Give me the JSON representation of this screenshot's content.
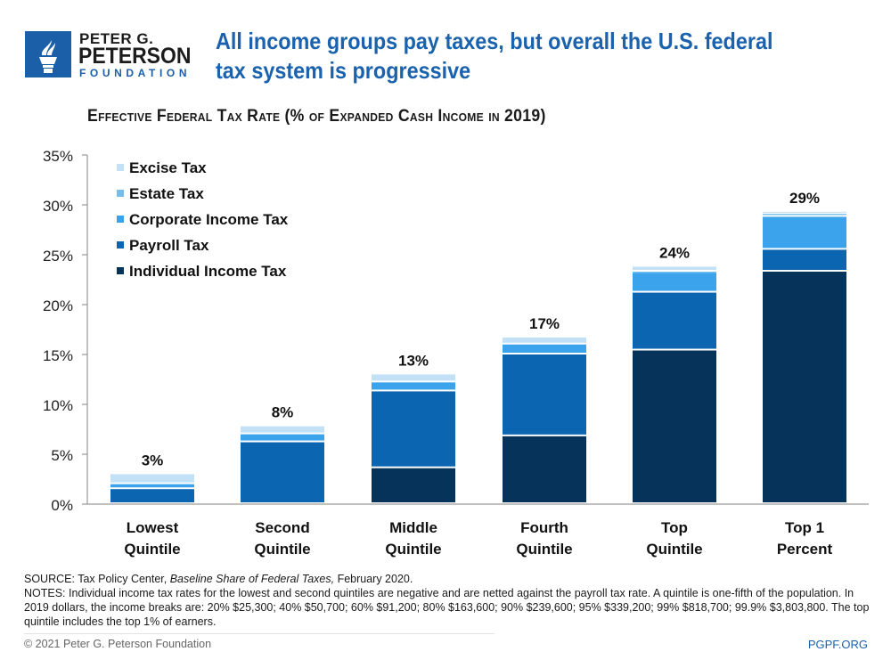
{
  "brand": {
    "line1": "PETER G.",
    "line2": "PETERSON",
    "line3": "FOUNDATION",
    "icon": "torch-icon",
    "color": "#1a5fa8"
  },
  "headline": "All income groups pay taxes, but overall the U.S. federal tax system is progressive",
  "chart_data": {
    "type": "bar",
    "stacked": true,
    "title": "Effective Federal Tax Rate (% of Expanded Cash Income in 2019)",
    "xlabel": "",
    "ylabel": "",
    "ylim": [
      0,
      35
    ],
    "yticks": [
      0,
      5,
      10,
      15,
      20,
      25,
      30,
      35
    ],
    "ytick_labels": [
      "0%",
      "5%",
      "10%",
      "15%",
      "20%",
      "25%",
      "30%",
      "35%"
    ],
    "grid": false,
    "legend_position": "top-left",
    "categories": [
      [
        "Lowest",
        "Quintile"
      ],
      [
        "Second",
        "Quintile"
      ],
      [
        "Middle",
        "Quintile"
      ],
      [
        "Fourth",
        "Quintile"
      ],
      [
        "Top",
        "Quintile"
      ],
      [
        "Top 1",
        "Percent"
      ]
    ],
    "series": [
      {
        "name": "Individual Income Tax",
        "color": "#06335a",
        "values": [
          0,
          0,
          3.6,
          6.8,
          15.4,
          23.3
        ]
      },
      {
        "name": "Payroll Tax",
        "color": "#0b65b0",
        "values": [
          1.5,
          6.2,
          7.7,
          8.2,
          5.8,
          2.2
        ]
      },
      {
        "name": "Corporate Income Tax",
        "color": "#3aa3ec",
        "values": [
          0.5,
          0.8,
          0.9,
          1.0,
          2.0,
          3.3
        ]
      },
      {
        "name": "Estate Tax",
        "color": "#74bdec",
        "values": [
          0,
          0,
          0,
          0,
          0.1,
          0.3
        ]
      },
      {
        "name": "Excise Tax",
        "color": "#c2e0f6",
        "values": [
          1.0,
          0.8,
          0.8,
          0.7,
          0.5,
          0.2
        ]
      }
    ],
    "legend_order": [
      "Excise Tax",
      "Estate Tax",
      "Corporate Income Tax",
      "Payroll Tax",
      "Individual Income Tax"
    ],
    "totals": [
      3,
      8,
      13,
      17,
      24,
      29
    ],
    "total_labels": [
      "3%",
      "8%",
      "13%",
      "17%",
      "24%",
      "29%"
    ]
  },
  "source": {
    "prefix": "SOURCE: Tax Policy Center, ",
    "title": "Baseline Share of Federal Taxes,",
    "suffix": " February 2020.",
    "notes": "NOTES: Individual income tax rates for the lowest and second quintiles are negative and are netted against the payroll tax rate. A quintile is one-fifth of the population. In 2019 dollars, the income breaks are: 20% $25,300; 40% $50,700; 60% $91,200; 80% $163,600; 90% $239,600; 95% $339,200; 99% $818,700; 99.9% $3,803,800. The top quintile includes the top 1% of earners."
  },
  "footer": {
    "copyright": "© 2021 Peter G. Peterson Foundation",
    "site": "PGPF.ORG"
  }
}
